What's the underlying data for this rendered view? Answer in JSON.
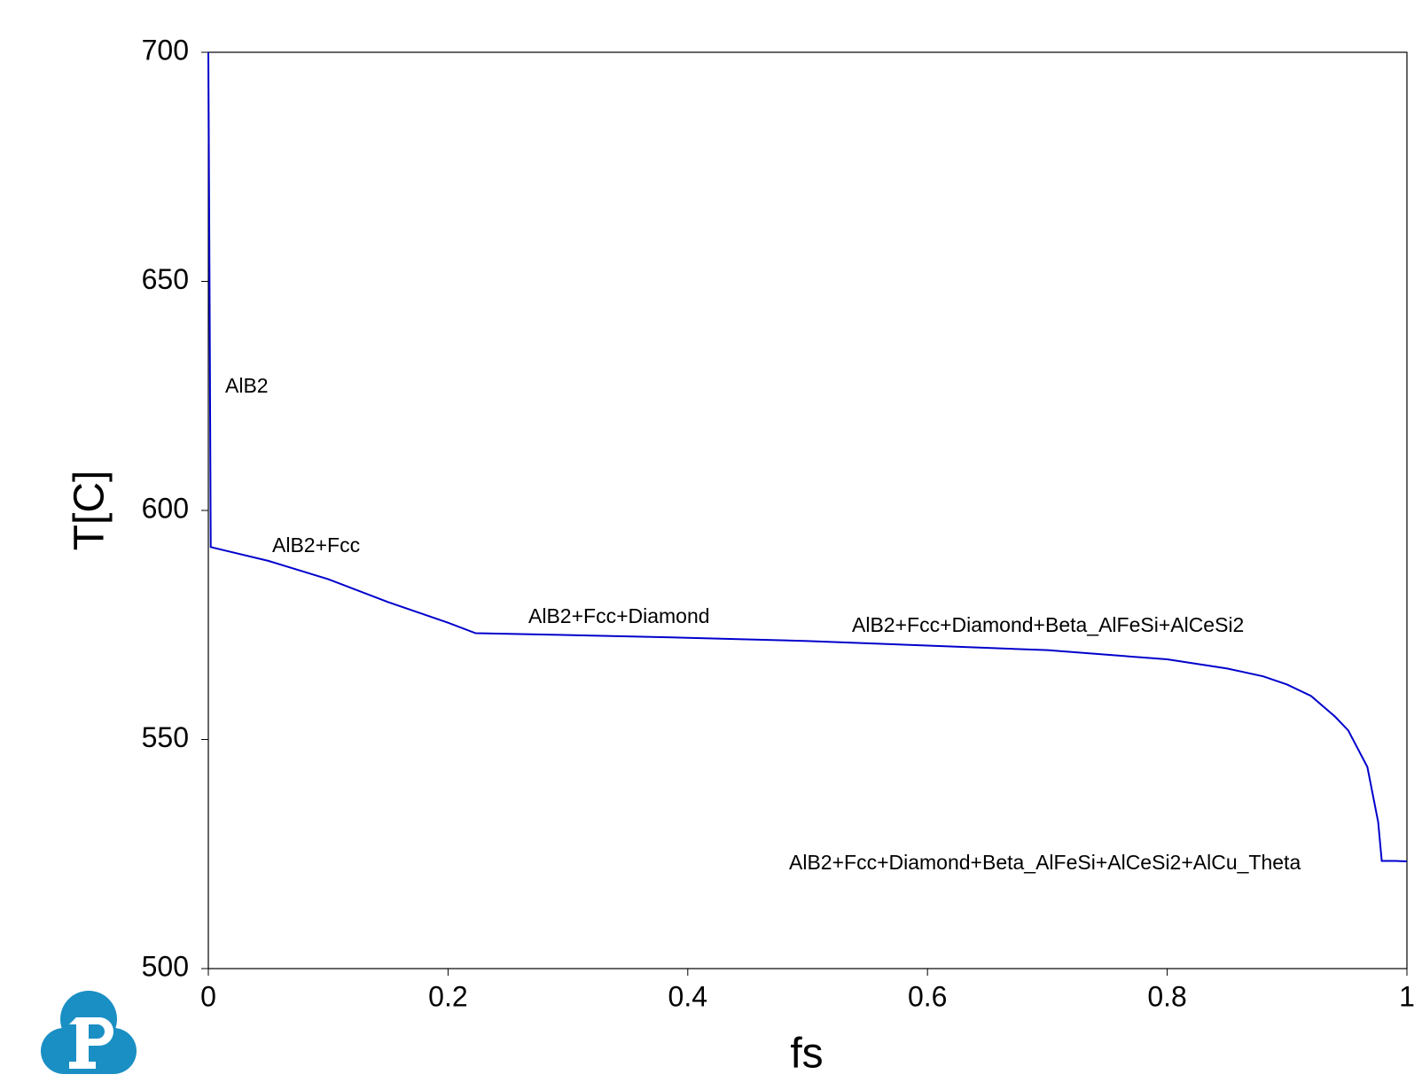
{
  "chart_data": {
    "type": "line",
    "xlabel": "fs",
    "ylabel": "T[C]",
    "x": [
      0,
      0.001,
      0.002,
      0.05,
      0.1,
      0.15,
      0.2,
      0.223,
      0.3,
      0.4,
      0.5,
      0.6,
      0.7,
      0.8,
      0.85,
      0.88,
      0.9,
      0.92,
      0.94,
      0.951,
      0.967,
      0.976,
      0.979,
      0.99,
      1.0
    ],
    "series": [
      {
        "color": "#0000cc",
        "values": [
          700,
          650,
          592,
          589,
          585,
          580,
          575.5,
          573.2,
          572.8,
          572.2,
          571.5,
          570.5,
          569.5,
          567.5,
          565.5,
          563.8,
          562,
          559.5,
          555,
          552,
          544,
          532,
          523.5,
          523.5,
          523.4
        ]
      }
    ],
    "annotations": [
      "AlB2",
      "AlB2+Fcc",
      "AlB2+Fcc+Diamond",
      "AlB2+Fcc+Diamond+Beta_AlFeSi+AlCeSi2",
      "AlB2+Fcc+Diamond+Beta_AlFeSi+AlCeSi2+AlCu_Theta"
    ],
    "xlim": [
      0,
      1
    ],
    "ylim": [
      500,
      700
    ],
    "xticks": [
      0,
      0.2,
      0.4,
      0.6,
      0.8,
      1
    ],
    "yticks": [
      500,
      550,
      600,
      650,
      700
    ],
    "grid": false
  }
}
